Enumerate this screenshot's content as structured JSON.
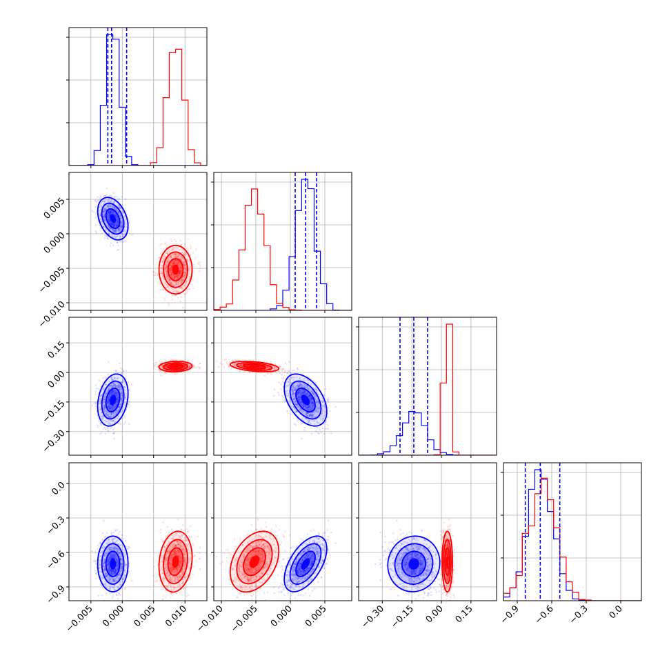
{
  "chart_data": {
    "type": "corner",
    "grid": true,
    "series": [
      {
        "color": "#0000ff",
        "means": [
          -0.0015,
          0.0022,
          -0.14,
          -0.7
        ],
        "stds": [
          0.0011,
          0.0014,
          0.06,
          0.11
        ],
        "correlations": [
          [
            0,
            1,
            -0.35
          ],
          [
            0,
            2,
            0.25
          ],
          [
            1,
            2,
            -0.45
          ],
          [
            2,
            3,
            0.05
          ],
          [
            0,
            3,
            0.0
          ],
          [
            1,
            3,
            0.55
          ]
        ],
        "quantiles": [
          [
            -0.0023,
            -0.0017,
            0.0007
          ],
          [
            0.0007,
            0.0022,
            0.0038
          ],
          [
            -0.21,
            -0.14,
            -0.07
          ],
          [
            -0.83,
            -0.7,
            -0.53
          ]
        ]
      },
      {
        "color": "#ff0000",
        "means": [
          0.0085,
          -0.0052,
          0.03,
          -0.68
        ],
        "stds": [
          0.0012,
          0.0016,
          0.012,
          0.12
        ],
        "correlations": [
          [
            0,
            1,
            0.0
          ],
          [
            0,
            2,
            0.1
          ],
          [
            1,
            2,
            -0.4
          ],
          [
            2,
            3,
            0.0
          ],
          [
            0,
            3,
            0.15
          ],
          [
            1,
            3,
            0.35
          ]
        ]
      }
    ],
    "axes": [
      {
        "range": [
          -0.0085,
          0.0135
        ],
        "ticks": [
          -0.005,
          0.0,
          0.005,
          0.01
        ],
        "tick_labels": [
          "−0.005",
          "0.000",
          "0.005",
          "0.010"
        ]
      },
      {
        "range": [
          -0.0111,
          0.0089
        ],
        "ticks": [
          -0.01,
          -0.005,
          0.0,
          0.005
        ],
        "tick_labels": [
          "−0.010",
          "−0.005",
          "0.000",
          "0.005"
        ]
      },
      {
        "range": [
          -0.42,
          0.28
        ],
        "ticks": [
          -0.3,
          -0.15,
          0.0,
          0.15
        ],
        "tick_labels": [
          "−0.30",
          "−0.15",
          "0.00",
          "0.15"
        ]
      },
      {
        "range": [
          -1.02,
          0.18
        ],
        "ticks": [
          -0.9,
          -0.6,
          -0.3,
          0.0
        ],
        "tick_labels": [
          "−0.9",
          "−0.6",
          "−0.3",
          "0.0"
        ]
      }
    ]
  }
}
